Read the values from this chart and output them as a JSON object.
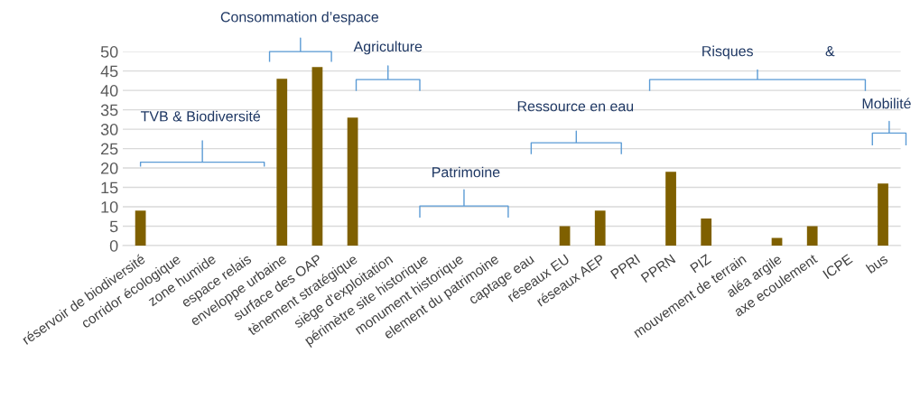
{
  "chart_data": {
    "type": "bar",
    "categories": [
      "réservoir de biodiversité",
      "corridor écologique",
      "zone humide",
      "espace relais",
      "enveloppe urbaine",
      "surface des OAP",
      "tènement stratégique",
      "siège d'exploitation",
      "périmètre site historique",
      "monument historique",
      "element du patrimoine",
      "captage eau",
      "réseaux EU",
      "réseaux AEP",
      "PPRI",
      "PPRN",
      "PIZ",
      "mouvement de terrain",
      "aléa argile",
      "axe ecoulement",
      "ICPE",
      "bus"
    ],
    "values": [
      9,
      0,
      0,
      0,
      43,
      46,
      33,
      0,
      0,
      0,
      0,
      0,
      5,
      9,
      0,
      19,
      7,
      0,
      2,
      5,
      0,
      16
    ],
    "color": "#7f6000",
    "ylim": [
      0,
      50
    ],
    "yticks": [
      0,
      5,
      10,
      15,
      20,
      25,
      30,
      35,
      40,
      45,
      50
    ],
    "grid": "y",
    "annotations": [
      "TVB & Biodiversité",
      "Consommation d’espace",
      "Agriculture",
      "Patrimoine",
      "Ressource en eau",
      "Risques",
      "&",
      "Mobilité"
    ]
  }
}
